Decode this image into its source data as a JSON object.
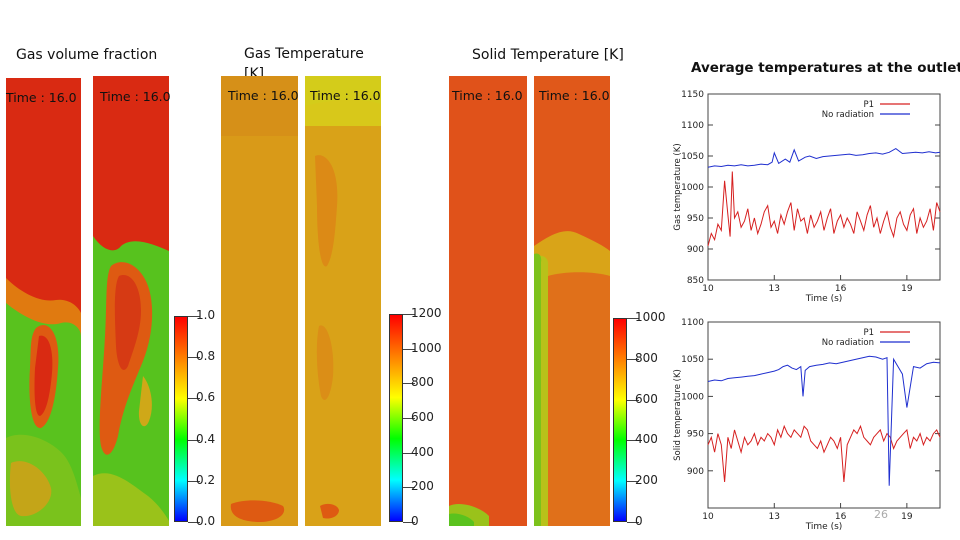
{
  "titles": {
    "gas_volume_fraction": "Gas volume fraction",
    "gas_temperature_line1": "Gas Temperature",
    "gas_temperature_line2": "[K]",
    "solid_temperature": "Solid Temperature [K]",
    "average_temperatures": "Average temperatures at the outlet"
  },
  "time_labels": [
    "Time : 16.0",
    "Time : 16.0",
    "Time : 16.0",
    "Time : 16.0",
    "Time : 16.0",
    "Time : 16.0"
  ],
  "colorbars": {
    "volume_fraction": [
      "1.0",
      "0.8",
      "0.6",
      "0.4",
      "0.2",
      "0.0"
    ],
    "gas_temperature": [
      "1200",
      "1000",
      "800",
      "600",
      "400",
      "200",
      "0"
    ],
    "solid_temperature": [
      "1000",
      "800",
      "600",
      "400",
      "200",
      "0"
    ],
    "scale_colors": [
      "#ff0000",
      "#ff8000",
      "#ffff00",
      "#00ff00",
      "#00ffff",
      "#0000ff"
    ]
  },
  "page_number": "26",
  "chart_data": [
    {
      "type": "line",
      "xlabel": "Time (s)",
      "ylabel": "Gas temperature (K)",
      "xticks": [
        "10",
        "13",
        "16",
        "19"
      ],
      "yticks": [
        "850",
        "900",
        "950",
        "1000",
        "1050",
        "1100",
        "1150"
      ],
      "xlim": [
        10,
        20.5
      ],
      "ylim": [
        850,
        1150
      ],
      "legend_position": "top-right",
      "series": [
        {
          "name": "P1",
          "color": "#d62020",
          "x": [
            10.0,
            10.15,
            10.3,
            10.45,
            10.6,
            10.75,
            10.9,
            11.0,
            11.1,
            11.2,
            11.35,
            11.5,
            11.65,
            11.8,
            11.95,
            12.1,
            12.25,
            12.4,
            12.55,
            12.7,
            12.85,
            13.0,
            13.15,
            13.3,
            13.45,
            13.6,
            13.75,
            13.9,
            14.05,
            14.2,
            14.35,
            14.5,
            14.65,
            14.8,
            14.95,
            15.1,
            15.25,
            15.4,
            15.55,
            15.7,
            15.85,
            16.0,
            16.15,
            16.3,
            16.45,
            16.6,
            16.75,
            16.9,
            17.05,
            17.2,
            17.35,
            17.5,
            17.65,
            17.8,
            17.95,
            18.1,
            18.25,
            18.4,
            18.55,
            18.7,
            18.85,
            19.0,
            19.15,
            19.3,
            19.45,
            19.6,
            19.75,
            19.9,
            20.05,
            20.2,
            20.35,
            20.5
          ],
          "y": [
            905,
            925,
            915,
            940,
            930,
            1010,
            955,
            920,
            1025,
            950,
            960,
            935,
            945,
            965,
            930,
            950,
            925,
            940,
            960,
            970,
            935,
            945,
            925,
            955,
            940,
            960,
            975,
            930,
            965,
            945,
            950,
            925,
            955,
            935,
            945,
            960,
            930,
            950,
            965,
            925,
            945,
            955,
            935,
            950,
            940,
            925,
            960,
            945,
            930,
            955,
            970,
            935,
            950,
            925,
            945,
            960,
            935,
            920,
            950,
            960,
            940,
            930,
            955,
            965,
            925,
            950,
            935,
            945,
            965,
            930,
            975,
            960
          ]
        },
        {
          "name": "No radiation",
          "color": "#1f2fcf",
          "x": [
            10.0,
            10.3,
            10.6,
            10.9,
            11.2,
            11.5,
            11.8,
            12.1,
            12.4,
            12.7,
            12.9,
            13.0,
            13.2,
            13.5,
            13.7,
            13.9,
            14.1,
            14.4,
            14.6,
            14.9,
            15.2,
            15.5,
            15.8,
            16.1,
            16.4,
            16.7,
            17.0,
            17.3,
            17.6,
            17.9,
            18.2,
            18.5,
            18.8,
            19.1,
            19.4,
            19.7,
            20.0,
            20.3,
            20.5
          ],
          "y": [
            1032,
            1034,
            1033,
            1035,
            1034,
            1036,
            1034,
            1035,
            1037,
            1036,
            1040,
            1055,
            1038,
            1045,
            1040,
            1060,
            1042,
            1048,
            1050,
            1046,
            1049,
            1050,
            1051,
            1052,
            1053,
            1051,
            1052,
            1054,
            1055,
            1053,
            1056,
            1062,
            1054,
            1055,
            1056,
            1055,
            1057,
            1055,
            1056
          ]
        }
      ]
    },
    {
      "type": "line",
      "xlabel": "Time (s)",
      "ylabel": "Solid temperature (K)",
      "xticks": [
        "10",
        "13",
        "16",
        "19"
      ],
      "yticks": [
        "900",
        "950",
        "1000",
        "1050",
        "1100"
      ],
      "xlim": [
        10,
        20.5
      ],
      "ylim": [
        850,
        1100
      ],
      "legend_position": "top-right",
      "series": [
        {
          "name": "P1",
          "color": "#d62020",
          "x": [
            10.0,
            10.15,
            10.3,
            10.45,
            10.6,
            10.75,
            10.9,
            11.05,
            11.2,
            11.35,
            11.5,
            11.65,
            11.8,
            11.95,
            12.1,
            12.25,
            12.4,
            12.55,
            12.7,
            12.85,
            13.0,
            13.15,
            13.3,
            13.45,
            13.6,
            13.75,
            13.9,
            14.05,
            14.2,
            14.35,
            14.5,
            14.65,
            14.8,
            14.95,
            15.1,
            15.25,
            15.4,
            15.55,
            15.7,
            15.85,
            16.0,
            16.15,
            16.3,
            16.45,
            16.6,
            16.75,
            16.9,
            17.05,
            17.2,
            17.35,
            17.5,
            17.65,
            17.8,
            17.95,
            18.1,
            18.25,
            18.4,
            18.55,
            18.7,
            18.85,
            19.0,
            19.15,
            19.3,
            19.45,
            19.6,
            19.75,
            19.9,
            20.05,
            20.2,
            20.35,
            20.5
          ],
          "y": [
            935,
            945,
            925,
            950,
            935,
            885,
            945,
            930,
            955,
            940,
            925,
            945,
            935,
            940,
            950,
            935,
            945,
            940,
            950,
            945,
            935,
            955,
            945,
            960,
            950,
            945,
            955,
            950,
            945,
            960,
            955,
            940,
            935,
            930,
            940,
            925,
            935,
            945,
            940,
            930,
            945,
            885,
            935,
            945,
            955,
            950,
            960,
            945,
            940,
            935,
            945,
            950,
            955,
            940,
            950,
            945,
            930,
            940,
            945,
            950,
            955,
            930,
            945,
            940,
            950,
            935,
            945,
            940,
            950,
            955,
            945
          ]
        },
        {
          "name": "No radiation",
          "color": "#1f2fcf",
          "x": [
            10.0,
            10.3,
            10.6,
            10.9,
            11.2,
            11.5,
            11.8,
            12.1,
            12.4,
            12.7,
            13.0,
            13.2,
            13.4,
            13.6,
            13.8,
            14.0,
            14.2,
            14.3,
            14.4,
            14.6,
            14.9,
            15.2,
            15.5,
            15.8,
            16.1,
            16.4,
            16.7,
            17.0,
            17.3,
            17.6,
            17.9,
            18.1,
            18.2,
            18.4,
            18.6,
            18.8,
            19.0,
            19.3,
            19.6,
            19.9,
            20.2,
            20.5
          ],
          "y": [
            1020,
            1022,
            1021,
            1024,
            1025,
            1026,
            1027,
            1028,
            1030,
            1032,
            1034,
            1036,
            1040,
            1042,
            1038,
            1036,
            1040,
            1000,
            1035,
            1040,
            1042,
            1043,
            1045,
            1044,
            1046,
            1048,
            1050,
            1052,
            1054,
            1053,
            1050,
            1052,
            880,
            1050,
            1040,
            1030,
            985,
            1040,
            1038,
            1044,
            1046,
            1045
          ]
        }
      ]
    }
  ]
}
